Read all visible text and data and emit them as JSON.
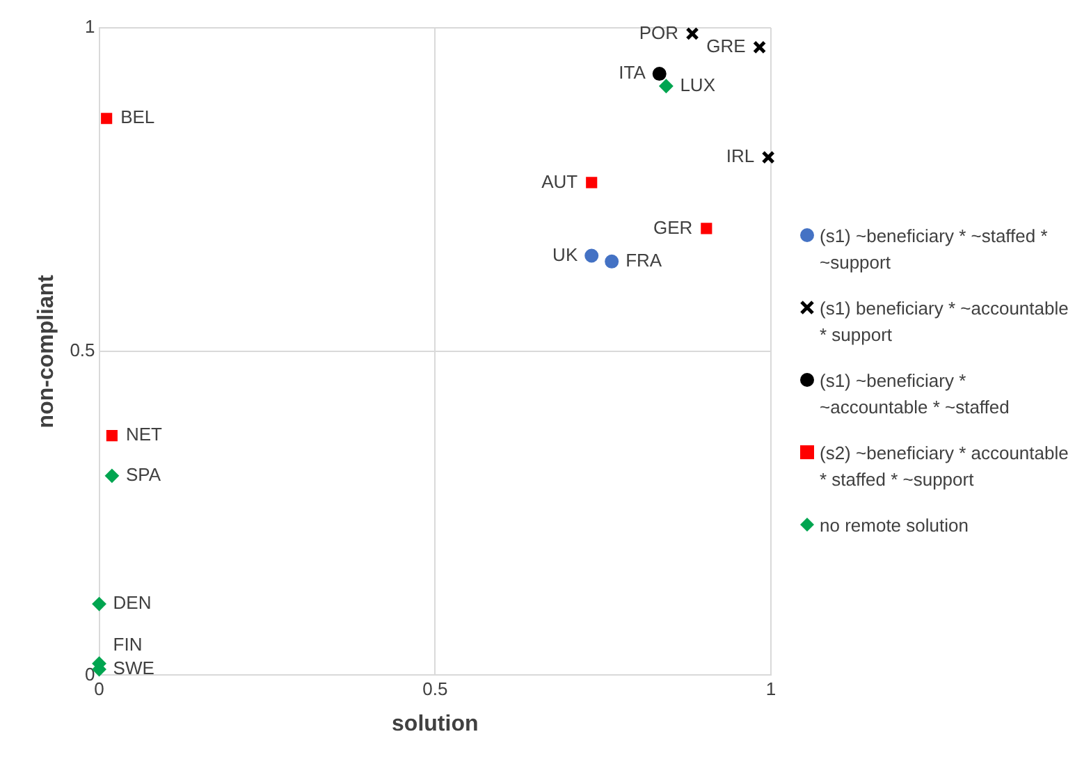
{
  "chart_data": {
    "type": "scatter",
    "xlabel": "solution",
    "ylabel": "non-compliant",
    "xlim": [
      0,
      1
    ],
    "ylim": [
      0,
      1
    ],
    "xticks": [
      0,
      0.5,
      1
    ],
    "yticks": [
      0,
      0.5,
      1
    ],
    "grid": true,
    "legend": "right",
    "series": [
      {
        "name": "(s1) ~beneficiary * ~staffed * ~support",
        "color": "#4472c4",
        "marker": "circle",
        "x": [
          0.733,
          0.763
        ],
        "values": [
          0.648,
          0.639
        ]
      },
      {
        "name": "(s1) beneficiary * ~accountable * support",
        "color": "#000000",
        "marker": "cross",
        "x": [
          0.883,
          0.983,
          0.996
        ],
        "values": [
          0.991,
          0.97,
          0.8
        ]
      },
      {
        "name": "(s1) ~beneficiary * ~accountable * ~staffed",
        "color": "#000000",
        "marker": "circle",
        "x": [
          0.834
        ],
        "values": [
          0.929
        ]
      },
      {
        "name": "(s2) ~beneficiary * accountable * staffed * ~support",
        "color": "#ff0000",
        "marker": "square",
        "x": [
          0.733,
          0.904,
          0.011,
          0.019
        ],
        "values": [
          0.761,
          0.69,
          0.86,
          0.37
        ]
      },
      {
        "name": "no remote solution",
        "color": "#00a550",
        "marker": "diamond",
        "x": [
          0.844,
          0.019,
          0,
          0,
          0
        ],
        "values": [
          0.91,
          0.308,
          0.11,
          0.018,
          0.009
        ]
      }
    ],
    "annotations": [
      {
        "text": "UK",
        "x": 0.733,
        "y": 0.648
      },
      {
        "text": "FRA",
        "x": 0.763,
        "y": 0.639
      },
      {
        "text": "POR",
        "x": 0.883,
        "y": 0.991
      },
      {
        "text": "GRE",
        "x": 0.983,
        "y": 0.97
      },
      {
        "text": "IRL",
        "x": 0.996,
        "y": 0.8
      },
      {
        "text": "ITA",
        "x": 0.834,
        "y": 0.929
      },
      {
        "text": "AUT",
        "x": 0.733,
        "y": 0.761
      },
      {
        "text": "GER",
        "x": 0.904,
        "y": 0.69
      },
      {
        "text": "BEL",
        "x": 0.011,
        "y": 0.86
      },
      {
        "text": "NET",
        "x": 0.019,
        "y": 0.37
      },
      {
        "text": "LUX",
        "x": 0.844,
        "y": 0.91
      },
      {
        "text": "SPA",
        "x": 0.019,
        "y": 0.308
      },
      {
        "text": "DEN",
        "x": 0,
        "y": 0.11
      },
      {
        "text": "FIN",
        "x": 0,
        "y": 0.018
      },
      {
        "text": "SWE",
        "x": 0,
        "y": 0.009
      }
    ]
  }
}
